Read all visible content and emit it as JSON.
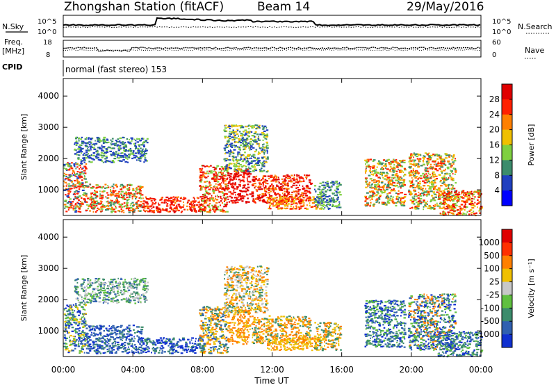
{
  "header": {
    "station": "Zhongshan Station (fitACF)",
    "beam": "Beam 14",
    "date": "29/May/2016"
  },
  "summary": {
    "left_top_label": "N.Sky",
    "right_top_label": "N.Search",
    "left_mid_label_1": "Freq.",
    "left_mid_label_2": "[MHz]",
    "right_mid_label": "Nave",
    "cpid_label": "CPID",
    "cpid_text": "normal (fast stereo) 153",
    "nsky_ticks": [
      "10^5",
      "10^0"
    ],
    "nsearch_ticks": [
      "10^5",
      "10^0"
    ],
    "freq_ticks": [
      "18",
      "8"
    ],
    "nave_ticks": [
      "60",
      "0"
    ]
  },
  "chart_data": [
    {
      "type": "heatmap",
      "name": "power",
      "ylabel": "Slant Range [km]",
      "ylim": [
        180,
        4560
      ],
      "y_ticks": [
        "4000",
        "3000",
        "2000",
        "1000"
      ],
      "x_ticks": [
        "00:00",
        "04:00",
        "08:00",
        "12:00",
        "16:00",
        "20:00",
        "00:00"
      ],
      "xlim_hours": [
        0,
        24
      ],
      "colorbar_label": "Power [dB]",
      "colorbar_ticks": [
        "28",
        "24",
        "20",
        "16",
        "12",
        "8",
        "4"
      ],
      "colors": [
        "#0000ff",
        "#2040c0",
        "#3c8c6c",
        "#7fd040",
        "#f0c000",
        "#ff8000",
        "#ff2000",
        "#e00000"
      ]
    },
    {
      "type": "heatmap",
      "name": "velocity",
      "ylabel": "Slant Range [km]",
      "ylim": [
        180,
        4560
      ],
      "y_ticks": [
        "4000",
        "3000",
        "2000",
        "1000"
      ],
      "x_ticks": [
        "00:00",
        "04:00",
        "08:00",
        "12:00",
        "16:00",
        "20:00",
        "00:00"
      ],
      "xlim_hours": [
        0,
        24
      ],
      "xlabel": "Time UT",
      "colorbar_label": "Velocity [m s⁻¹]",
      "colorbar_ticks": [
        "1000",
        "500",
        "100",
        "25",
        "-25",
        "-100",
        "-500",
        "-1000"
      ],
      "colors": [
        "#1030d0",
        "#3060b0",
        "#3c8c6c",
        "#60c040",
        "#c8c8c8",
        "#f0c000",
        "#ff8000",
        "#ff3000",
        "#e00000"
      ]
    }
  ],
  "scatter_regions": {
    "power": [
      {
        "t0": 0.0,
        "t1": 1.3,
        "r0": 300,
        "r1": 1900,
        "c": [
          2,
          3,
          5,
          6,
          6,
          1
        ]
      },
      {
        "t0": 1.3,
        "t1": 4.5,
        "r0": 300,
        "r1": 1200,
        "c": [
          5,
          6,
          6,
          2,
          3
        ]
      },
      {
        "t0": 4.5,
        "t1": 8.0,
        "r0": 300,
        "r1": 800,
        "c": [
          6,
          6,
          7,
          5
        ]
      },
      {
        "t0": 0.6,
        "t1": 4.8,
        "r0": 1900,
        "r1": 2700,
        "c": [
          1,
          1,
          2,
          3
        ]
      },
      {
        "t0": 7.8,
        "t1": 9.4,
        "r0": 300,
        "r1": 1800,
        "c": [
          6,
          7,
          5,
          3
        ]
      },
      {
        "t0": 9.4,
        "t1": 10.7,
        "r0": 600,
        "r1": 1700,
        "c": [
          6,
          7,
          7
        ]
      },
      {
        "t0": 9.2,
        "t1": 11.7,
        "r0": 1600,
        "r1": 3100,
        "c": [
          1,
          2,
          3,
          4
        ]
      },
      {
        "t0": 10.8,
        "t1": 14.2,
        "r0": 600,
        "r1": 1500,
        "c": [
          7,
          6,
          7,
          5
        ]
      },
      {
        "t0": 11.7,
        "t1": 14.8,
        "r0": 400,
        "r1": 800,
        "c": [
          6,
          5,
          4
        ]
      },
      {
        "t0": 14.4,
        "t1": 15.9,
        "r0": 400,
        "r1": 1300,
        "c": [
          2,
          3,
          1
        ]
      },
      {
        "t0": 17.3,
        "t1": 19.6,
        "r0": 500,
        "r1": 2000,
        "c": [
          3,
          5,
          4,
          6,
          2
        ]
      },
      {
        "t0": 19.8,
        "t1": 22.5,
        "r0": 400,
        "r1": 2200,
        "c": [
          3,
          5,
          6,
          4,
          2
        ]
      },
      {
        "t0": 21.5,
        "t1": 24.0,
        "r0": 200,
        "r1": 1000,
        "c": [
          6,
          5,
          7,
          4,
          3
        ]
      }
    ],
    "velocity": [
      {
        "t0": 0.0,
        "t1": 1.3,
        "r0": 300,
        "r1": 1900,
        "c": [
          0,
          1,
          2,
          3,
          5
        ]
      },
      {
        "t0": 1.3,
        "t1": 4.5,
        "r0": 300,
        "r1": 1200,
        "c": [
          0,
          1,
          1,
          2
        ]
      },
      {
        "t0": 4.5,
        "t1": 8.0,
        "r0": 300,
        "r1": 800,
        "c": [
          0,
          1,
          0,
          2
        ]
      },
      {
        "t0": 0.6,
        "t1": 4.8,
        "r0": 1900,
        "r1": 2700,
        "c": [
          4,
          2,
          3,
          1
        ]
      },
      {
        "t0": 7.8,
        "t1": 9.4,
        "r0": 300,
        "r1": 1800,
        "c": [
          6,
          5,
          2,
          1
        ]
      },
      {
        "t0": 9.4,
        "t1": 10.7,
        "r0": 600,
        "r1": 1700,
        "c": [
          6,
          5,
          6
        ]
      },
      {
        "t0": 9.2,
        "t1": 11.7,
        "r0": 1600,
        "r1": 3100,
        "c": [
          6,
          5,
          2,
          4
        ]
      },
      {
        "t0": 10.8,
        "t1": 14.2,
        "r0": 600,
        "r1": 1500,
        "c": [
          6,
          5,
          6,
          2
        ]
      },
      {
        "t0": 11.7,
        "t1": 14.8,
        "r0": 400,
        "r1": 800,
        "c": [
          6,
          5,
          5
        ]
      },
      {
        "t0": 14.4,
        "t1": 15.9,
        "r0": 400,
        "r1": 1300,
        "c": [
          5,
          6,
          2
        ]
      },
      {
        "t0": 17.3,
        "t1": 19.6,
        "r0": 500,
        "r1": 2000,
        "c": [
          2,
          1,
          0,
          3
        ]
      },
      {
        "t0": 19.8,
        "t1": 22.5,
        "r0": 400,
        "r1": 2200,
        "c": [
          2,
          1,
          0,
          3,
          6
        ]
      },
      {
        "t0": 21.5,
        "t1": 24.0,
        "r0": 200,
        "r1": 1000,
        "c": [
          0,
          1,
          3,
          2
        ]
      }
    ]
  }
}
